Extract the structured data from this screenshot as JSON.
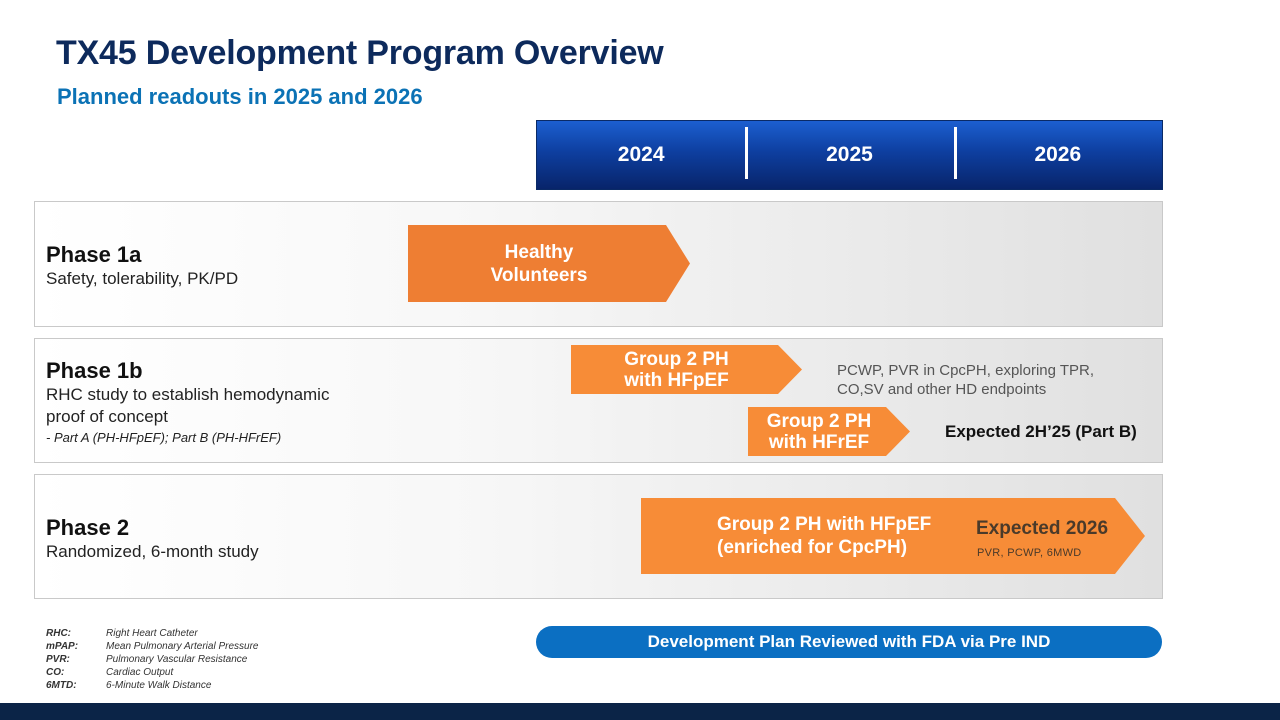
{
  "title": "TX45 Development Program Overview",
  "subtitle": "Planned readouts in 2025 and 2026",
  "years": [
    "2024",
    "2025",
    "2026"
  ],
  "phases": [
    {
      "name": "Phase 1a",
      "description": "Safety, tolerability, PK/PD",
      "arrows": [
        {
          "label_lines": [
            "Healthy",
            "Volunteers"
          ]
        }
      ]
    },
    {
      "name": "Phase 1b",
      "description_lines": [
        "RHC study to establish hemodynamic",
        "proof of concept"
      ],
      "note": "- Part A (PH-HFpEF); Part B (PH-HFrEF)",
      "arrows": [
        {
          "label_lines": [
            "Group 2 PH",
            "with HFpEF"
          ]
        },
        {
          "label_lines": [
            "Group 2 PH",
            "with HFrEF"
          ]
        }
      ],
      "endpoint_lines": [
        "PCWP, PVR in CpcPH, exploring TPR,",
        "CO,SV and other HD endpoints"
      ],
      "expected": "Expected 2H’25 (Part B)"
    },
    {
      "name": "Phase 2",
      "description": "Randomized, 6-month study",
      "arrows": [
        {
          "label_lines": [
            "Group 2 PH with HFpEF",
            "(enriched for CpcPH)"
          ],
          "expected": "Expected 2026",
          "expected_sub": "PVR, PCWP, 6MWD"
        }
      ]
    }
  ],
  "fda_banner": "Development Plan Reviewed with FDA via Pre IND",
  "abbreviations": [
    {
      "key": "RHC:",
      "value": "Right Heart Catheter"
    },
    {
      "key": "mPAP:",
      "value": "Mean Pulmonary Arterial Pressure"
    },
    {
      "key": "PVR:",
      "value": "Pulmonary Vascular Resistance"
    },
    {
      "key": "CO:",
      "value": "Cardiac Output"
    },
    {
      "key": "6MTD:",
      "value": "6-Minute Walk Distance"
    }
  ],
  "colors": {
    "title": "#0d2a5c",
    "subtitle": "#0b72b5",
    "arrow_orange": "#f78c37",
    "arrow_orange_dark": "#ee7e33",
    "banner_blue": "#0b6fc2",
    "footer_navy": "#0b2447"
  }
}
